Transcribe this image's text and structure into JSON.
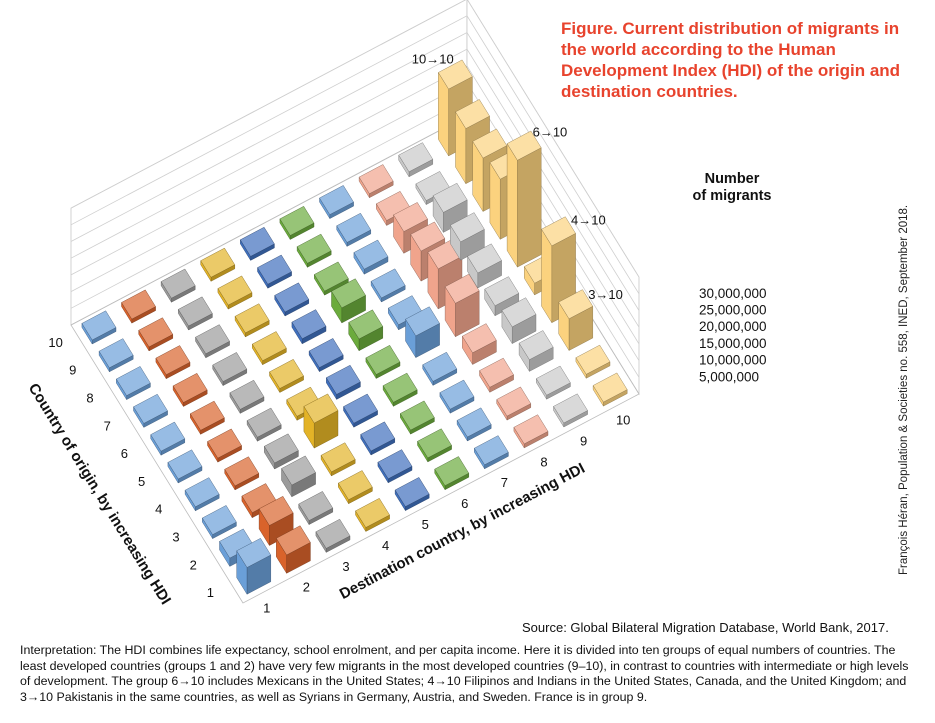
{
  "figure": {
    "title": "Figure. Current distribution of migrants in the world according to the Human Development Index (HDI) of the origin and destination countries.",
    "source": "Source: Global Bilateral Migration Database, World Bank, 2017.",
    "credit": "François Héran, Population & Societies no. 558, INED, September 2018.",
    "interpretation": "Interpretation: The HDI combines life expectancy, school enrolment, and per capita income. Here it is divided into ten groups of equal numbers of countries. The least developed countries (groups 1 and 2) have very few migrants in the most developed countries (9–10), in contrast to countries with intermediate or high levels of development. The group 6→10 includes Mexicans in the United States; 4→10 Filipinos and Indians in the United States, Canada, and the United Kingdom; and 3→10 Pakistanis in the same countries, as well as Syrians in Germany, Austria, and Sweden. France is in group 9."
  },
  "chart_data": {
    "type": "bar3d",
    "ylabel": "Country of origin, by increasing HDI",
    "xlabel": "Destination country, by increasing HDI",
    "zlabel": "Number of migrants",
    "origin_categories": [
      "1",
      "2",
      "3",
      "4",
      "5",
      "6",
      "7",
      "8",
      "9",
      "10"
    ],
    "destination_categories": [
      "1",
      "2",
      "3",
      "4",
      "5",
      "6",
      "7",
      "8",
      "9",
      "10"
    ],
    "z_ticks": [
      "5,000,000",
      "10,000,000",
      "15,000,000",
      "20,000,000",
      "25,000,000",
      "30,000,000"
    ],
    "z_tick_values": [
      5000000,
      10000000,
      15000000,
      20000000,
      25000000,
      30000000
    ],
    "zlim": [
      0,
      35000000
    ],
    "destination_colors": [
      "#6a9fd8",
      "#d9632b",
      "#9b9b9b",
      "#e3b327",
      "#3f6fbd",
      "#6bab3c",
      "#6a9fd8",
      "#f0a48c",
      "#c8c8c8",
      "#fbd27e"
    ],
    "annotations": [
      "10→10",
      "6→10",
      "4→10",
      "3→10"
    ],
    "values": [
      [
        8000000,
        5500000,
        700000,
        400000,
        350000,
        300000,
        250000,
        200000,
        200000,
        150000
      ],
      [
        2500000,
        6000000,
        600000,
        400000,
        350000,
        300000,
        250000,
        200000,
        250000,
        200000
      ],
      [
        500000,
        1500000,
        3500000,
        1000000,
        700000,
        500000,
        500000,
        1500000,
        3500000,
        9500000
      ],
      [
        500000,
        800000,
        1800000,
        7500000,
        1000000,
        600000,
        800000,
        3500000,
        5000000,
        23000000
      ],
      [
        400000,
        500000,
        800000,
        1200000,
        1500000,
        800000,
        6500000,
        10000000,
        3000000,
        3500000
      ],
      [
        400000,
        500000,
        600000,
        700000,
        800000,
        3500000,
        1500000,
        12000000,
        4500000,
        32000000
      ],
      [
        300000,
        400000,
        400000,
        500000,
        1500000,
        4500000,
        1200000,
        9000000,
        5500000,
        18000000
      ],
      [
        300000,
        350000,
        400000,
        500000,
        1000000,
        600000,
        1500000,
        6500000,
        6000000,
        16000000
      ],
      [
        300000,
        300000,
        350000,
        400000,
        500000,
        1000000,
        500000,
        1500000,
        1200000,
        16500000
      ],
      [
        250000,
        250000,
        300000,
        300000,
        400000,
        400000,
        400000,
        1000000,
        1500000,
        20000000
      ]
    ]
  }
}
